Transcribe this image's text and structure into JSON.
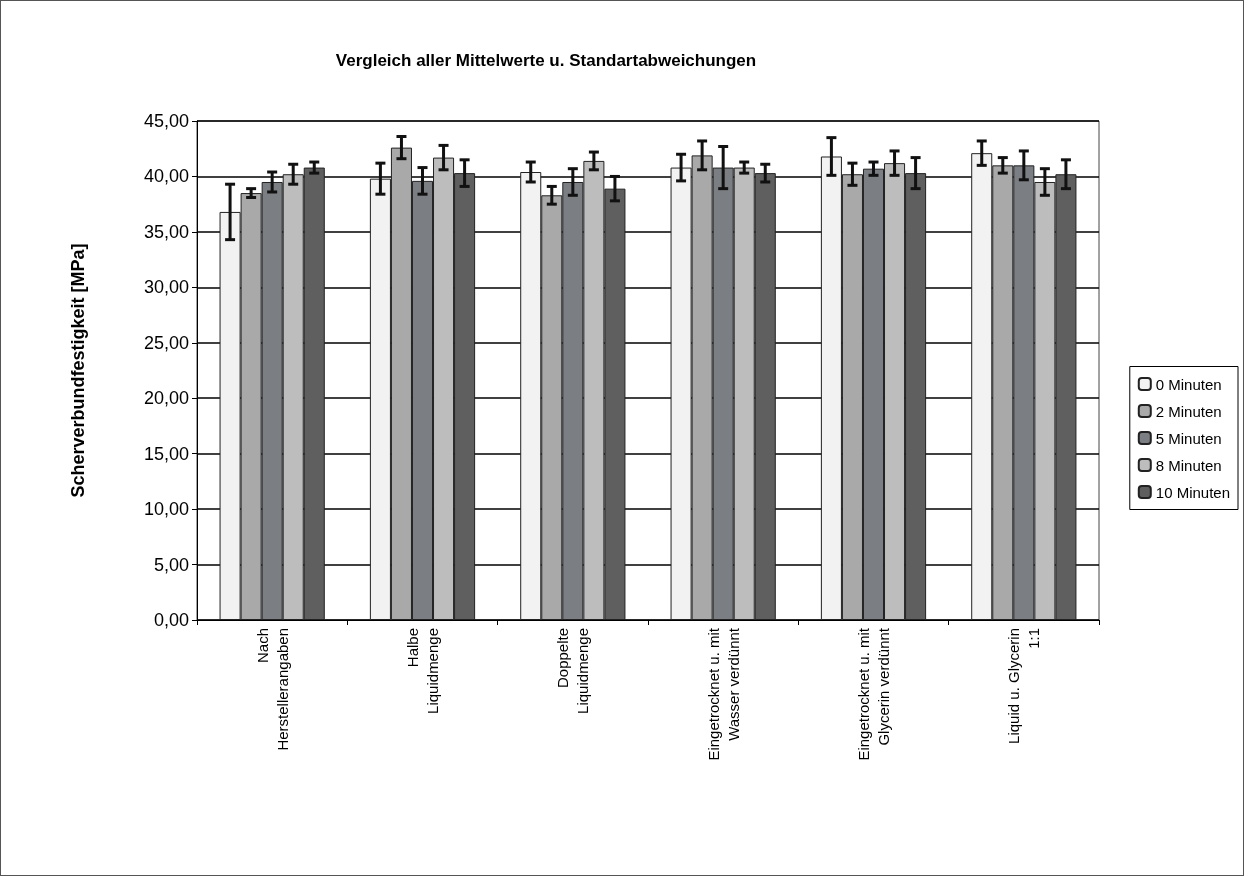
{
  "chart_data": {
    "type": "bar",
    "title": "Vergleich aller Mittelwerte u. Standartabweichungen",
    "ylabel": "Scherverbundfestigkeit [MPa]",
    "categories": [
      "Nach\nHerstellerangaben",
      "Halbe\nLiquidmenge",
      "Doppelte\nLiquidmenge",
      "Eingetrocknet u. mit\nWasser verdünnt",
      "Eingetrocknet u. mit\nGlycerin verdünnt",
      "Liquid u. Glycerin\n1:1"
    ],
    "series": [
      {
        "name": "0 Minuten",
        "color": "#f2f2f2",
        "values": [
          36.8,
          39.8,
          40.4,
          40.8,
          41.8,
          42.1
        ],
        "errors": [
          2.5,
          1.4,
          0.9,
          1.2,
          1.7,
          1.1
        ]
      },
      {
        "name": "2 Minuten",
        "color": "#a9a9a9",
        "values": [
          38.5,
          42.6,
          38.3,
          41.9,
          40.2,
          41.0
        ],
        "errors": [
          0.4,
          1.0,
          0.8,
          1.3,
          1.0,
          0.7
        ]
      },
      {
        "name": "5 Minuten",
        "color": "#7b7f83",
        "values": [
          39.5,
          39.6,
          39.5,
          40.8,
          40.7,
          41.0
        ],
        "errors": [
          0.9,
          1.2,
          1.2,
          1.9,
          0.6,
          1.3
        ]
      },
      {
        "name": "8 Minuten",
        "color": "#bdbdbd",
        "values": [
          40.2,
          41.7,
          41.4,
          40.8,
          41.2,
          39.5
        ],
        "errors": [
          0.9,
          1.1,
          0.8,
          0.5,
          1.1,
          1.2
        ]
      },
      {
        "name": "10 Minuten",
        "color": "#5f5f5f",
        "values": [
          40.8,
          40.3,
          38.9,
          40.3,
          40.3,
          40.2
        ],
        "errors": [
          0.5,
          1.2,
          1.1,
          0.8,
          1.4,
          1.3
        ]
      }
    ],
    "ylim": [
      0,
      45
    ],
    "yticks": [
      {
        "value": 0,
        "label": "0,00"
      },
      {
        "value": 5,
        "label": "5,00"
      },
      {
        "value": 10,
        "label": "10,00"
      },
      {
        "value": 15,
        "label": "15,00"
      },
      {
        "value": 20,
        "label": "20,00"
      },
      {
        "value": 25,
        "label": "25,00"
      },
      {
        "value": 30,
        "label": "30,00"
      },
      {
        "value": 35,
        "label": "35,00"
      },
      {
        "value": 40,
        "label": "40,00"
      },
      {
        "value": 45,
        "label": "45,00"
      }
    ],
    "grid": "y",
    "legend": "right"
  }
}
